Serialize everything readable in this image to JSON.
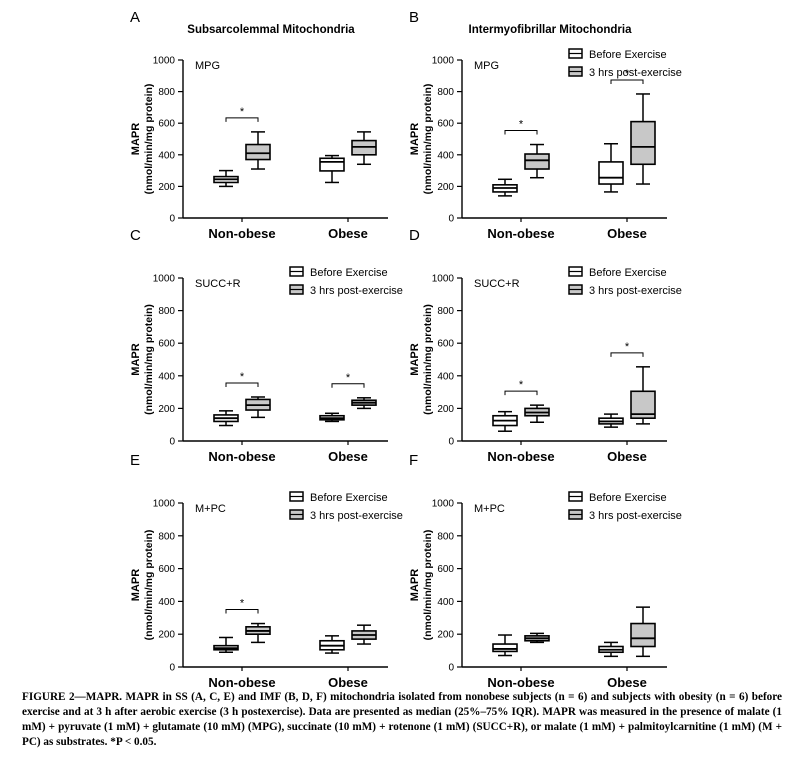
{
  "figure": {
    "caption": "FIGURE 2—MAPR. MAPR in SS (A, C, E) and IMF (B, D, F) mitochondria isolated from nonobese subjects (n = 6) and subjects with obesity (n = 6) before exercise and at 3 h after aerobic exercise (3 h postexercise). Data are presented as median (25%–75% IQR). MAPR was measured in the presence of malate (1 mM) + pyruvate (1 mM) + glutamate (10 mM) (MPG), succinate (10 mM) + rotenone (1 mM) (SUCC+R), or malate (1 mM) + palmitoylcarnitine (1 mM) (M + PC) as substrates. *P < 0.05.",
    "colors": {
      "before": "#ffffff",
      "post": "#c8c8c8",
      "stroke": "#000000"
    }
  },
  "chart_data": [
    {
      "type": "box",
      "panel": "A",
      "column_title": "Subsarcolemmal Mitochondria",
      "substrate": "MPG",
      "ylabel": "MAPR",
      "yunit": "(nmol/min/mg protein)",
      "ylim": [
        0,
        1000
      ],
      "yticks": [
        "0",
        "200",
        "400",
        "600",
        "800",
        "1000"
      ],
      "categories": [
        "Non-obese",
        "Obese"
      ],
      "legend": [],
      "significance": [
        {
          "category": "Non-obese",
          "label": "*"
        }
      ],
      "series": [
        {
          "name": "Before Exercise",
          "boxes": [
            {
              "min": 200,
              "q1": 225,
              "median": 245,
              "q3": 262,
              "max": 300
            },
            {
              "min": 225,
              "q1": 298,
              "median": 355,
              "q3": 378,
              "max": 395
            }
          ]
        },
        {
          "name": "3 hrs post-exercise",
          "boxes": [
            {
              "min": 310,
              "q1": 370,
              "median": 410,
              "q3": 465,
              "max": 545
            },
            {
              "min": 340,
              "q1": 400,
              "median": 450,
              "q3": 490,
              "max": 545
            }
          ]
        }
      ]
    },
    {
      "type": "box",
      "panel": "B",
      "column_title": "Intermyofibrillar Mitochondria",
      "substrate": "MPG",
      "ylabel": "MAPR",
      "yunit": "(nmol/min/mg protein)",
      "ylim": [
        0,
        1000
      ],
      "yticks": [
        "0",
        "200",
        "400",
        "600",
        "800",
        "1000"
      ],
      "categories": [
        "Non-obese",
        "Obese"
      ],
      "legend": [
        "Before Exercise",
        "3 hrs post-exercise"
      ],
      "significance": [
        {
          "category": "Non-obese",
          "label": "*"
        },
        {
          "category": "Obese",
          "label": "*"
        }
      ],
      "series": [
        {
          "name": "Before Exercise",
          "boxes": [
            {
              "min": 140,
              "q1": 165,
              "median": 190,
              "q3": 210,
              "max": 245
            },
            {
              "min": 165,
              "q1": 215,
              "median": 255,
              "q3": 355,
              "max": 470
            }
          ]
        },
        {
          "name": "3 hrs post-exercise",
          "boxes": [
            {
              "min": 255,
              "q1": 310,
              "median": 365,
              "q3": 405,
              "max": 465
            },
            {
              "min": 215,
              "q1": 340,
              "median": 450,
              "q3": 610,
              "max": 785
            }
          ]
        }
      ]
    },
    {
      "type": "box",
      "panel": "C",
      "column_title": "",
      "substrate": "SUCC+R",
      "ylabel": "MAPR",
      "yunit": "(nmol/min/mg protein)",
      "ylim": [
        0,
        1000
      ],
      "yticks": [
        "0",
        "200",
        "400",
        "600",
        "800",
        "1000"
      ],
      "categories": [
        "Non-obese",
        "Obese"
      ],
      "legend": [
        "Before Exercise",
        "3 hrs post-exercise"
      ],
      "significance": [
        {
          "category": "Non-obese",
          "label": "*"
        },
        {
          "category": "Obese",
          "label": "*"
        }
      ],
      "series": [
        {
          "name": "Before Exercise",
          "boxes": [
            {
              "min": 95,
              "q1": 120,
              "median": 140,
              "q3": 160,
              "max": 185
            },
            {
              "min": 120,
              "q1": 130,
              "median": 140,
              "q3": 155,
              "max": 170
            }
          ]
        },
        {
          "name": "3 hrs post-exercise",
          "boxes": [
            {
              "min": 145,
              "q1": 190,
              "median": 220,
              "q3": 255,
              "max": 270
            },
            {
              "min": 200,
              "q1": 220,
              "median": 235,
              "q3": 250,
              "max": 265
            }
          ]
        }
      ]
    },
    {
      "type": "box",
      "panel": "D",
      "column_title": "",
      "substrate": "SUCC+R",
      "ylabel": "MAPR",
      "yunit": "(nmol/min/mg protein)",
      "ylim": [
        0,
        1000
      ],
      "yticks": [
        "0",
        "200",
        "400",
        "600",
        "800",
        "1000"
      ],
      "categories": [
        "Non-obese",
        "Obese"
      ],
      "legend": [
        "Before Exercise",
        "3 hrs post-exercise"
      ],
      "significance": [
        {
          "category": "Non-obese",
          "label": "*"
        },
        {
          "category": "Obese",
          "label": "*"
        }
      ],
      "series": [
        {
          "name": "Before Exercise",
          "boxes": [
            {
              "min": 60,
              "q1": 95,
              "median": 125,
              "q3": 155,
              "max": 180
            },
            {
              "min": 85,
              "q1": 105,
              "median": 120,
              "q3": 140,
              "max": 165
            }
          ]
        },
        {
          "name": "3 hrs post-exercise",
          "boxes": [
            {
              "min": 115,
              "q1": 155,
              "median": 175,
              "q3": 200,
              "max": 220
            },
            {
              "min": 105,
              "q1": 140,
              "median": 165,
              "q3": 305,
              "max": 455
            }
          ]
        }
      ]
    },
    {
      "type": "box",
      "panel": "E",
      "column_title": "",
      "substrate": "M+PC",
      "ylabel": "MAPR",
      "yunit": "(nmol/min/mg protein)",
      "ylim": [
        0,
        1000
      ],
      "yticks": [
        "0",
        "200",
        "400",
        "600",
        "800",
        "1000"
      ],
      "categories": [
        "Non-obese",
        "Obese"
      ],
      "legend": [
        "Before Exercise",
        "3 hrs post-exercise"
      ],
      "significance": [
        {
          "category": "Non-obese",
          "label": "*"
        }
      ],
      "series": [
        {
          "name": "Before Exercise",
          "boxes": [
            {
              "min": 90,
              "q1": 105,
              "median": 115,
              "q3": 130,
              "max": 180
            },
            {
              "min": 85,
              "q1": 105,
              "median": 130,
              "q3": 160,
              "max": 190
            }
          ]
        },
        {
          "name": "3 hrs post-exercise",
          "boxes": [
            {
              "min": 150,
              "q1": 200,
              "median": 220,
              "q3": 245,
              "max": 265
            },
            {
              "min": 140,
              "q1": 170,
              "median": 195,
              "q3": 220,
              "max": 255
            }
          ]
        }
      ]
    },
    {
      "type": "box",
      "panel": "F",
      "column_title": "",
      "substrate": "M+PC",
      "ylabel": "MAPR",
      "yunit": "(nmol/min/mg protein)",
      "ylim": [
        0,
        1000
      ],
      "yticks": [
        "0",
        "200",
        "400",
        "600",
        "800",
        "1000"
      ],
      "categories": [
        "Non-obese",
        "Obese"
      ],
      "legend": [
        "Before Exercise",
        "3 hrs post-exercise"
      ],
      "significance": [],
      "series": [
        {
          "name": "Before Exercise",
          "boxes": [
            {
              "min": 70,
              "q1": 95,
              "median": 110,
              "q3": 140,
              "max": 195
            },
            {
              "min": 65,
              "q1": 90,
              "median": 105,
              "q3": 125,
              "max": 150
            }
          ]
        },
        {
          "name": "3 hrs post-exercise",
          "boxes": [
            {
              "min": 150,
              "q1": 160,
              "median": 175,
              "q3": 190,
              "max": 205
            },
            {
              "min": 65,
              "q1": 125,
              "median": 175,
              "q3": 265,
              "max": 365
            }
          ]
        }
      ]
    }
  ]
}
